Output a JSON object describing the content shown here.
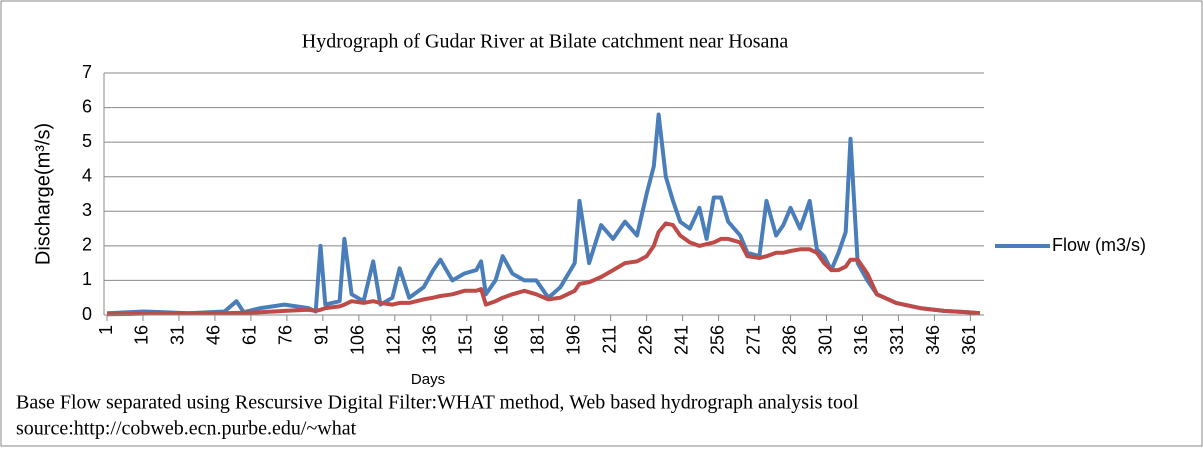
{
  "chart_data": {
    "type": "line",
    "title": "Hydrograph of Gudar River at Bilate catchment near Hosana",
    "y_label": "Discharge(m³/s)",
    "x_label": "Days",
    "annotations": [
      "Base Flow separated using Rescursive Digital Filter:WHAT method, Web based hydrograph analysis tool",
      "source:http://cobweb.ecn.purbe.edu/~what"
    ],
    "x": [
      1,
      10,
      16,
      25,
      35,
      50,
      55,
      58,
      65,
      75,
      85,
      88,
      90,
      92,
      98,
      100,
      103,
      108,
      112,
      115,
      120,
      123,
      127,
      133,
      137,
      140,
      145,
      150,
      155,
      157,
      159,
      163,
      166,
      170,
      175,
      180,
      185,
      190,
      196,
      198,
      202,
      207,
      212,
      217,
      222,
      226,
      229,
      231,
      234,
      237,
      240,
      244,
      248,
      251,
      254,
      257,
      260,
      265,
      268,
      273,
      276,
      280,
      283,
      286,
      290,
      294,
      297,
      300,
      303,
      306,
      309,
      311,
      314,
      318,
      322,
      330,
      340,
      350,
      360,
      365
    ],
    "series": [
      {
        "name": "Flow (m3/s)",
        "color": "#4a7ebb",
        "values": [
          0.05,
          0.08,
          0.1,
          0.08,
          0.05,
          0.1,
          0.4,
          0.08,
          0.2,
          0.3,
          0.2,
          0.1,
          2.0,
          0.3,
          0.4,
          2.2,
          0.6,
          0.4,
          1.55,
          0.3,
          0.5,
          1.35,
          0.5,
          0.8,
          1.3,
          1.6,
          1.0,
          1.2,
          1.3,
          1.55,
          0.6,
          1.0,
          1.7,
          1.2,
          1.0,
          1.0,
          0.5,
          0.8,
          1.5,
          3.3,
          1.5,
          2.6,
          2.2,
          2.7,
          2.3,
          3.5,
          4.3,
          5.8,
          4.0,
          3.3,
          2.7,
          2.5,
          3.1,
          2.2,
          3.4,
          3.4,
          2.7,
          2.3,
          1.8,
          1.7,
          3.3,
          2.3,
          2.6,
          3.1,
          2.5,
          3.3,
          1.9,
          1.7,
          1.3,
          1.8,
          2.4,
          5.1,
          1.5,
          1.0,
          0.6,
          0.35,
          0.2,
          0.12,
          0.08,
          0.05
        ]
      },
      {
        "color": "#be4b48",
        "values": [
          0.02,
          0.03,
          0.04,
          0.05,
          0.05,
          0.05,
          0.06,
          0.06,
          0.08,
          0.12,
          0.15,
          0.12,
          0.15,
          0.2,
          0.25,
          0.3,
          0.4,
          0.35,
          0.4,
          0.35,
          0.3,
          0.35,
          0.35,
          0.45,
          0.5,
          0.55,
          0.6,
          0.7,
          0.7,
          0.75,
          0.3,
          0.4,
          0.5,
          0.6,
          0.7,
          0.6,
          0.45,
          0.5,
          0.7,
          0.9,
          0.95,
          1.1,
          1.3,
          1.5,
          1.55,
          1.7,
          2.0,
          2.4,
          2.65,
          2.6,
          2.3,
          2.1,
          2.0,
          2.05,
          2.1,
          2.2,
          2.2,
          2.1,
          1.7,
          1.65,
          1.7,
          1.8,
          1.8,
          1.85,
          1.9,
          1.9,
          1.8,
          1.5,
          1.3,
          1.3,
          1.4,
          1.6,
          1.6,
          1.2,
          0.6,
          0.35,
          0.2,
          0.12,
          0.08,
          0.05
        ]
      }
    ],
    "xlim": [
      1,
      365
    ],
    "xticks": [
      1,
      16,
      31,
      46,
      61,
      76,
      91,
      106,
      121,
      136,
      151,
      166,
      181,
      196,
      211,
      226,
      241,
      256,
      271,
      286,
      301,
      316,
      331,
      346,
      361
    ],
    "ylim": [
      0,
      7
    ],
    "yticks": [
      0,
      1,
      2,
      3,
      4,
      5,
      6,
      7
    ],
    "grid": true,
    "legend": "right"
  }
}
